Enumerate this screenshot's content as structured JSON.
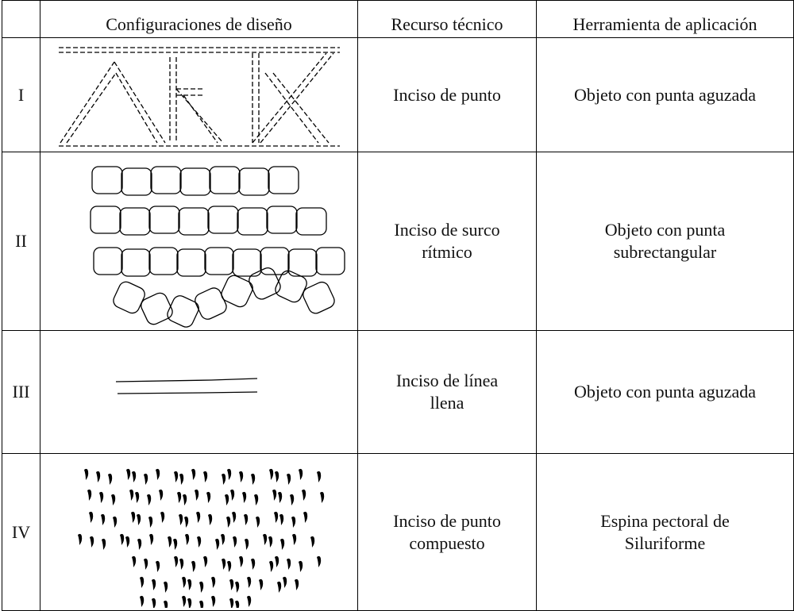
{
  "table": {
    "header": [
      "",
      "Configuraciones de diseño",
      "Recurso técnico",
      "Herramienta de aplicación"
    ],
    "rows": [
      {
        "numeral": "I",
        "technique": [
          "Inciso de punto"
        ],
        "tool": [
          "Objeto con punta aguzada"
        ]
      },
      {
        "numeral": "II",
        "technique": [
          "Inciso de surco",
          "rítmico"
        ],
        "tool": [
          "Objeto con punta",
          "subrectangular"
        ]
      },
      {
        "numeral": "III",
        "technique": [
          "Inciso de línea",
          "llena"
        ],
        "tool": [
          "Objeto con punta aguzada"
        ]
      },
      {
        "numeral": "IV",
        "technique": [
          "Inciso de punto",
          "compuesto"
        ],
        "tool": [
          "Espina pectoral de",
          "Siluriforme"
        ]
      }
    ]
  }
}
